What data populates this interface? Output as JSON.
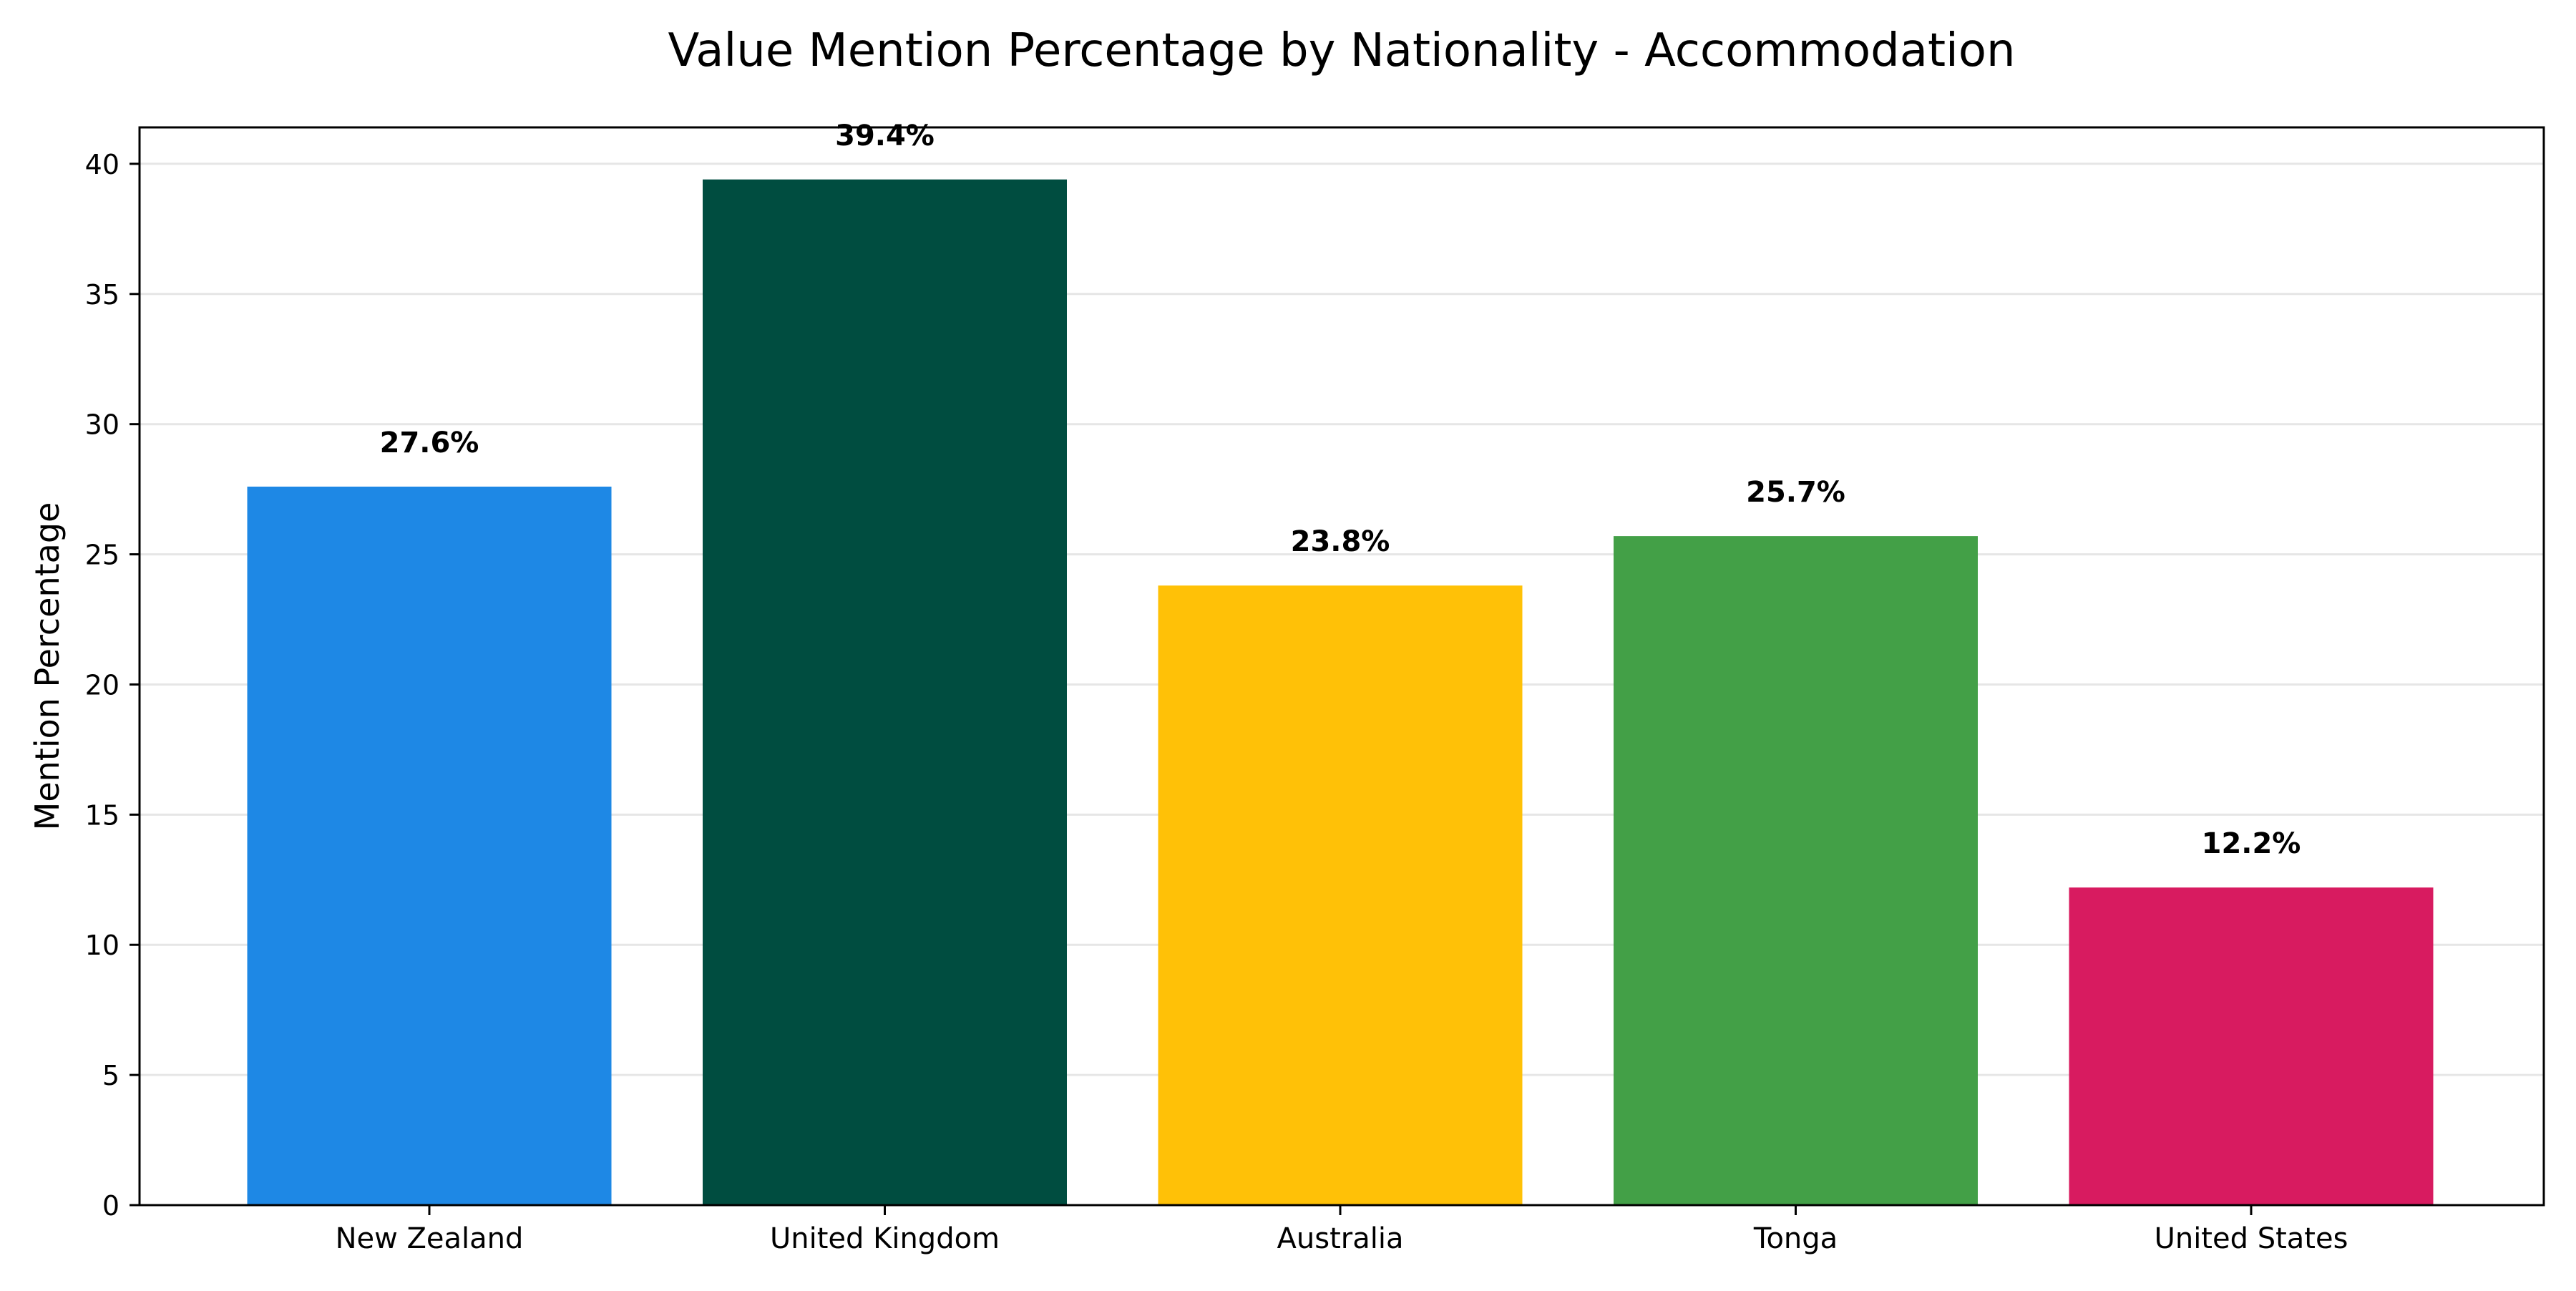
{
  "chart_data": {
    "type": "bar",
    "title": "Value Mention Percentage by Nationality - Accommodation",
    "xlabel": "",
    "ylabel": "Mention Percentage",
    "categories": [
      "New Zealand",
      "United Kingdom",
      "Australia",
      "Tonga",
      "United States"
    ],
    "values": [
      27.6,
      39.4,
      23.8,
      25.7,
      12.2
    ],
    "data_labels": [
      "27.6%",
      "39.4%",
      "23.8%",
      "25.7%",
      "12.2%"
    ],
    "colors": [
      "#1E88E5",
      "#004D40",
      "#FFC107",
      "#43A047",
      "#D81B60"
    ],
    "ylim": [
      0,
      41.4
    ],
    "yticks": [
      0,
      5,
      10,
      15,
      20,
      25,
      30,
      35,
      40
    ],
    "grid": "horizontal",
    "legend": "none"
  }
}
